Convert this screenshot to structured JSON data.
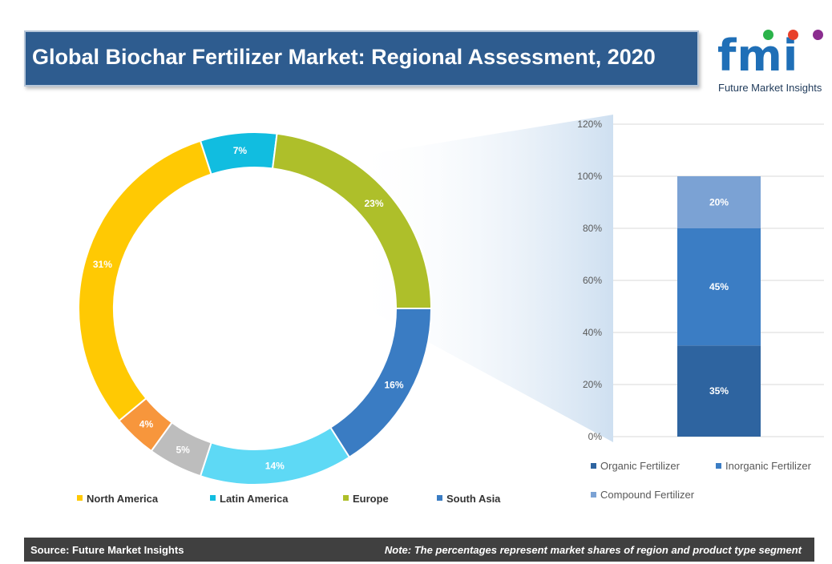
{
  "title": "Global Biochar Fertilizer Market: Regional Assessment, 2020",
  "logo": {
    "letters": "fmi",
    "subtitle": "Future Market Insights",
    "dot_colors": [
      "#2bb34a",
      "#e8412b",
      "#8b2d8f"
    ]
  },
  "footer": {
    "source": "Source: Future Market Insights",
    "note": "Note: The percentages represent market shares of region and product type segment"
  },
  "chart_data": [
    {
      "type": "pie",
      "style": "donut",
      "slices": [
        {
          "label": "South Asia",
          "value": 16,
          "display": "16%",
          "color": "#3a7cc3"
        },
        {
          "label": "",
          "value": 14,
          "display": "14%",
          "color": "#5ed9f5"
        },
        {
          "label": "",
          "value": 5,
          "display": "5%",
          "color": "#bdbdbd"
        },
        {
          "label": "",
          "value": 4,
          "display": "4%",
          "color": "#f7963c"
        },
        {
          "label": "North America",
          "value": 31,
          "display": "31%",
          "color": "#ffc903"
        },
        {
          "label": "Latin America",
          "value": 7,
          "display": "7%",
          "color": "#11bde0"
        },
        {
          "label": "Europe",
          "value": 23,
          "display": "23%",
          "color": "#aebf2a"
        }
      ],
      "legend": [
        {
          "label": "North America",
          "color": "#ffc903"
        },
        {
          "label": "Latin America",
          "color": "#11bde0"
        },
        {
          "label": "Europe",
          "color": "#aebf2a"
        },
        {
          "label": "South Asia",
          "color": "#3a7cc3"
        }
      ],
      "legend_position": "bottom"
    },
    {
      "type": "bar",
      "stacked": true,
      "categories": [
        ""
      ],
      "series": [
        {
          "name": "Organic Fertilizer",
          "values": [
            35
          ],
          "display": "35%",
          "color": "#2e64a0"
        },
        {
          "name": "Inorganic Fertilizer",
          "values": [
            45
          ],
          "display": "45%",
          "color": "#3b7dc4"
        },
        {
          "name": "Compound Fertilizer",
          "values": [
            20
          ],
          "display": "20%",
          "color": "#7ba2d4"
        }
      ],
      "ylim": [
        0,
        120
      ],
      "yticks": [
        "0%",
        "20%",
        "40%",
        "60%",
        "80%",
        "100%",
        "120%"
      ],
      "grid": true,
      "legend_position": "bottom"
    }
  ]
}
